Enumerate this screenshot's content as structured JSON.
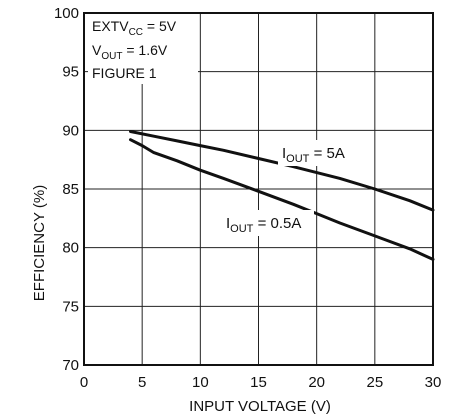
{
  "chart_data": {
    "type": "line",
    "xlabel": "INPUT VOLTAGE (V)",
    "ylabel": "EFFICIENCY (%)",
    "xlim": [
      0,
      30
    ],
    "ylim": [
      70,
      100
    ],
    "xticks": [
      "0",
      "5",
      "10",
      "15",
      "20",
      "25",
      "30"
    ],
    "yticks": [
      "70",
      "75",
      "80",
      "85",
      "90",
      "95",
      "100"
    ],
    "grid": true,
    "annotation": {
      "line1_main": "EXTV",
      "line1_sub": "CC",
      "line1_rest": " = 5V",
      "line2_main": "V",
      "line2_sub": "OUT",
      "line2_rest": " = 1.6V",
      "line3": "FIGURE 1"
    },
    "series": [
      {
        "label_main": "I",
        "label_sub": "OUT",
        "label_rest": " = 5A",
        "x": [
          4,
          6,
          8,
          10,
          12,
          15,
          18,
          20,
          22,
          25,
          28,
          30
        ],
        "y": [
          89.9,
          89.5,
          89.1,
          88.7,
          88.3,
          87.6,
          86.9,
          86.4,
          85.9,
          85.0,
          84.0,
          83.2
        ]
      },
      {
        "label_main": "I",
        "label_sub": "OUT",
        "label_rest": " = 0.5A",
        "x": [
          4,
          5,
          6,
          8,
          10,
          12,
          15,
          18,
          20,
          22,
          25,
          28,
          30
        ],
        "y": [
          89.2,
          88.7,
          88.1,
          87.4,
          86.6,
          85.9,
          84.8,
          83.7,
          82.9,
          82.1,
          81.0,
          79.9,
          79.0
        ]
      }
    ]
  }
}
